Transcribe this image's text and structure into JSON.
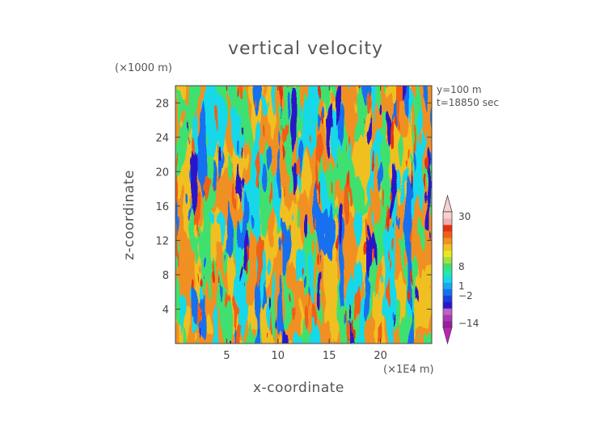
{
  "chart_data": {
    "type": "heatmap",
    "title": "vertical velocity",
    "xlabel": "x-coordinate",
    "ylabel": "z-coordinate",
    "x_scale_label": "(×1E4 m)",
    "z_scale_label": "(×1000 m)",
    "annotations": [
      "y=100 m",
      "t=18850 sec"
    ],
    "xlim": [
      0,
      25
    ],
    "ylim": [
      0,
      30
    ],
    "xticks": [
      5,
      10,
      15,
      20
    ],
    "yticks": [
      4,
      8,
      12,
      16,
      20,
      24,
      28
    ],
    "colorbar": {
      "tick_labels": [
        "30",
        "8",
        "1",
        "−2",
        "−14"
      ],
      "colors": [
        "#9c1a9c",
        "#a838b4",
        "#c060c8",
        "#2a18c8",
        "#1840e0",
        "#1870f0",
        "#18a8f0",
        "#18d8e8",
        "#20e8b0",
        "#40e070",
        "#a0e040",
        "#e8e820",
        "#f0c020",
        "#f09020",
        "#f06018",
        "#e83010",
        "#f0b0b0",
        "#f8d0d0"
      ]
    },
    "field_description": "vertical velocity field showing vertically elongated updraft and downdraft plumes"
  }
}
